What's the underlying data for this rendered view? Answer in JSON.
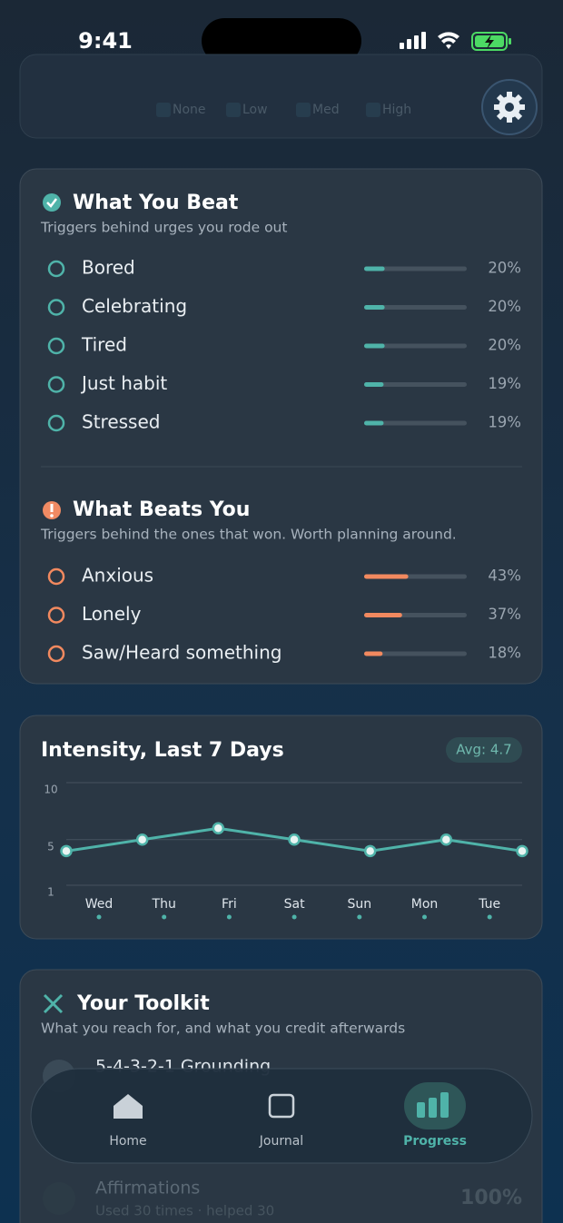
{
  "status_bar": {
    "time": "9:41"
  },
  "intensity_legend": [
    "None",
    "Low",
    "Med",
    "High"
  ],
  "beat": {
    "title": "What You Beat",
    "subtitle": "Triggers behind urges you rode out",
    "items": [
      {
        "label": "Bored",
        "value": 20,
        "value_label": "20%"
      },
      {
        "label": "Celebrating",
        "value": 20,
        "value_label": "20%"
      },
      {
        "label": "Tired",
        "value": 20,
        "value_label": "20%"
      },
      {
        "label": "Just habit",
        "value": 19,
        "value_label": "19%"
      },
      {
        "label": "Stressed",
        "value": 19,
        "value_label": "19%"
      }
    ]
  },
  "beats_you": {
    "title": "What Beats You",
    "subtitle": "Triggers behind the ones that won. Worth planning around.",
    "items": [
      {
        "label": "Anxious",
        "value": 43,
        "value_label": "43%"
      },
      {
        "label": "Lonely",
        "value": 37,
        "value_label": "37%"
      },
      {
        "label": "Saw/Heard something",
        "value": 18,
        "value_label": "18%"
      }
    ]
  },
  "intensity": {
    "title": "Intensity, Last 7 Days",
    "avg_label": "Avg: 4.7",
    "categories": [
      "Wed",
      "Thu",
      "Fri",
      "Sat",
      "Sun",
      "Mon",
      "Tue"
    ],
    "values": [
      4,
      5,
      6,
      5,
      4,
      5,
      4
    ],
    "ylim": [
      1,
      10
    ],
    "yticks": [
      1,
      5,
      10
    ]
  },
  "toolkit": {
    "title": "Your Toolkit",
    "subtitle": "What you reach for, and what you credit afterwards",
    "items": [
      {
        "label": "5-4-3-2-1 Grounding"
      },
      {
        "label": "Affirmations",
        "detail": "Used 30 times · helped 30",
        "value_label": "100%"
      }
    ]
  },
  "nav": {
    "items": [
      "Home",
      "Journal",
      "Progress"
    ],
    "active": 2
  }
}
